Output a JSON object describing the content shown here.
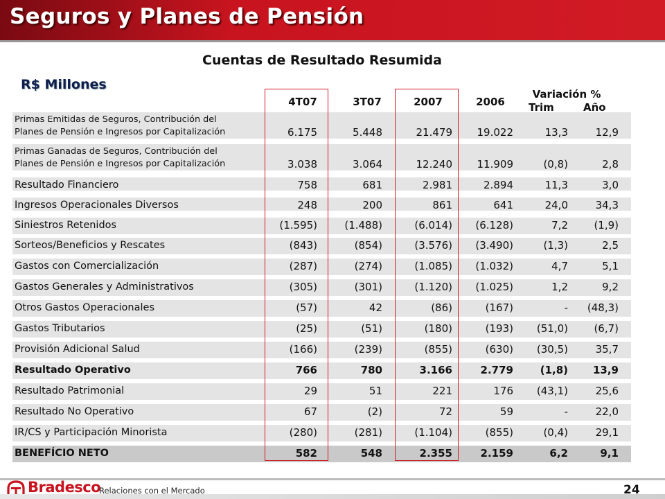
{
  "header": {
    "title": "Seguros y Planes de Pensión"
  },
  "subtitle": "Cuentas de Resultado Resumida",
  "unit": "R$ Millones",
  "columns": [
    "4T07",
    "3T07",
    "2007",
    "2006"
  ],
  "variation": {
    "title": "Variación %",
    "trim": "Trim",
    "anio": "Año"
  },
  "rows": [
    {
      "label": "Primas Emitidas de Seguros, Contribución del Planes de Pensión e Ingresos por Capitalización",
      "label_lines": [
        "Primas Emitidas de Seguros, Contribución del",
        "Planes de Pensión e Ingresos por Capitalización"
      ],
      "values": [
        "6.175",
        "5.448",
        "21.479",
        "19.022",
        "13,3",
        "12,9"
      ]
    },
    {
      "label": "Primas Ganadas de Seguros, Contribución del Planes de Pensión e Ingresos por Capitalización",
      "label_lines": [
        "Primas Ganadas de Seguros, Contribución del",
        "Planes de Pensión e Ingresos por Capitalización"
      ],
      "values": [
        "3.038",
        "3.064",
        "12.240",
        "11.909",
        "(0,8)",
        "2,8"
      ]
    },
    {
      "label": "Resultado Financiero",
      "values": [
        "758",
        "681",
        "2.981",
        "2.894",
        "11,3",
        "3,0"
      ]
    },
    {
      "label": "Ingresos Operacionales Diversos",
      "values": [
        "248",
        "200",
        "861",
        "641",
        "24,0",
        "34,3"
      ]
    },
    {
      "label": "Siniestros Retenidos",
      "values": [
        "(1.595)",
        "(1.488)",
        "(6.014)",
        "(6.128)",
        "7,2",
        "(1,9)"
      ]
    },
    {
      "label": "Sorteos/Beneficios y Rescates",
      "values": [
        "(843)",
        "(854)",
        "(3.576)",
        "(3.490)",
        "(1,3)",
        "2,5"
      ]
    },
    {
      "label": "Gastos con Comercialización",
      "values": [
        "(287)",
        "(274)",
        "(1.085)",
        "(1.032)",
        "4,7",
        "5,1"
      ]
    },
    {
      "label": "Gastos Generales y Administrativos",
      "values": [
        "(305)",
        "(301)",
        "(1.120)",
        "(1.025)",
        "1,2",
        "9,2"
      ]
    },
    {
      "label": "Otros Gastos Operacionales",
      "values": [
        "(57)",
        "42",
        "(86)",
        "(167)",
        "-",
        "(48,3)"
      ]
    },
    {
      "label": "Gastos Tributarios",
      "values": [
        "(25)",
        "(51)",
        "(180)",
        "(193)",
        "(51,0)",
        "(6,7)"
      ]
    },
    {
      "label": "Provisión Adicional Salud",
      "values": [
        "(166)",
        "(239)",
        "(855)",
        "(630)",
        "(30,5)",
        "35,7"
      ]
    },
    {
      "label": "Resultado Operativo",
      "values": [
        "766",
        "780",
        "3.166",
        "2.779",
        "(1,8)",
        "13,9"
      ],
      "bold": true
    },
    {
      "label": "Resultado Patrimonial",
      "values": [
        "29",
        "51",
        "221",
        "176",
        "(43,1)",
        "25,6"
      ]
    },
    {
      "label": "Resultado No Operativo",
      "values": [
        "67",
        "(2)",
        "72",
        "59",
        "-",
        "22,0"
      ]
    },
    {
      "label": "IR/CS y Participación Minorista",
      "values": [
        "(280)",
        "(281)",
        "(1.104)",
        "(855)",
        "(0,4)",
        "29,1"
      ]
    },
    {
      "label": "BENEFÍCIO NETO",
      "values": [
        "582",
        "548",
        "2.355",
        "2.159",
        "6,2",
        "9,1"
      ],
      "bold": true,
      "net": true
    }
  ],
  "footer": {
    "brand": "Bradesco",
    "section": "Relaciones con el Mercado",
    "page": "24"
  },
  "colors": {
    "brand_red": "#c8141f",
    "row_bg": "#e4e4e4",
    "net_bg": "#c9c9c9"
  }
}
